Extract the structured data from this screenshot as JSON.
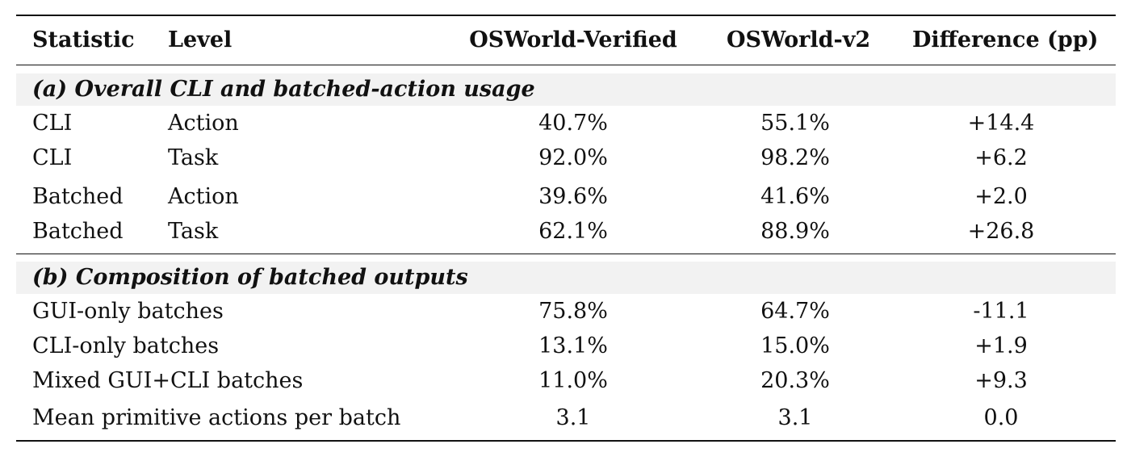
{
  "header": {
    "statistic": "Statistic",
    "level": "Level",
    "osworld_verified": "OSWorld-Verified",
    "osworld_v2": "OSWorld-v2",
    "difference": "Difference (pp)"
  },
  "section_a": {
    "title": "(a) Overall CLI and batched-action usage",
    "rows": [
      {
        "statistic": "CLI",
        "level": "Action",
        "verified": "40.7%",
        "v2": "55.1%",
        "diff": "+14.4"
      },
      {
        "statistic": "CLI",
        "level": "Task",
        "verified": "92.0%",
        "v2": "98.2%",
        "diff": "+6.2"
      },
      {
        "statistic": "Batched",
        "level": "Action",
        "verified": "39.6%",
        "v2": "41.6%",
        "diff": "+2.0"
      },
      {
        "statistic": "Batched",
        "level": "Task",
        "verified": "62.1%",
        "v2": "88.9%",
        "diff": "+26.8"
      }
    ]
  },
  "section_b": {
    "title": "(b) Composition of batched outputs",
    "rows": [
      {
        "statistic": "GUI-only batches",
        "verified": "75.8%",
        "v2": "64.7%",
        "diff": "-11.1"
      },
      {
        "statistic": "CLI-only batches",
        "verified": "13.1%",
        "v2": "15.0%",
        "diff": "+1.9"
      },
      {
        "statistic": "Mixed GUI+CLI batches",
        "verified": "11.0%",
        "v2": "20.3%",
        "diff": "+9.3"
      },
      {
        "statistic": "Mean primitive actions per batch",
        "verified": "3.1",
        "v2": "3.1",
        "diff": "0.0"
      }
    ]
  }
}
